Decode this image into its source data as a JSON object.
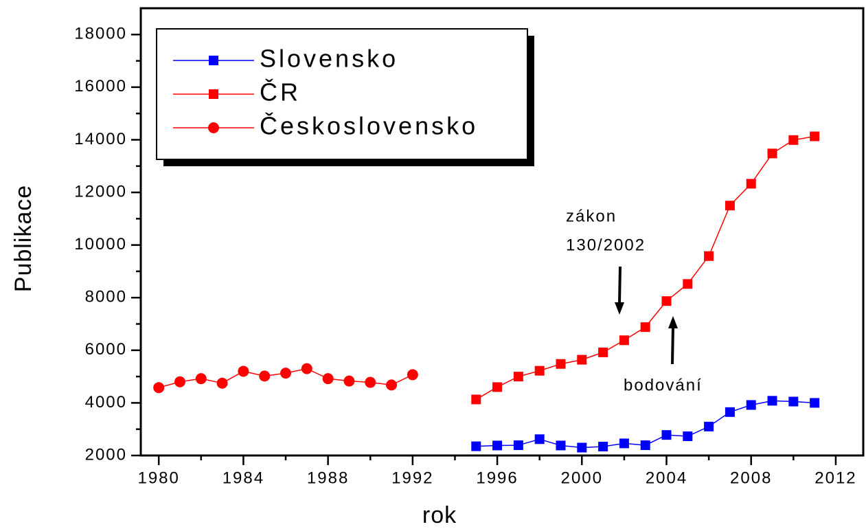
{
  "chart_data": {
    "type": "line",
    "x_label": "rok",
    "y_label": "Publikace",
    "x": [
      1980,
      1981,
      1982,
      1983,
      1984,
      1985,
      1986,
      1987,
      1988,
      1989,
      1990,
      1991,
      1992,
      1993,
      1994,
      1995,
      1996,
      1997,
      1998,
      1999,
      2000,
      2001,
      2002,
      2003,
      2004,
      2005,
      2006,
      2007,
      2008,
      2009,
      2010,
      2011
    ],
    "series": [
      {
        "name": "Slovensko",
        "color": "#0000ff",
        "marker": "square",
        "values": [
          null,
          null,
          null,
          null,
          null,
          null,
          null,
          null,
          null,
          null,
          null,
          null,
          null,
          null,
          null,
          2350,
          2380,
          2390,
          2620,
          2380,
          2300,
          2340,
          2460,
          2390,
          2780,
          2730,
          3100,
          3650,
          3920,
          4080,
          4050,
          4000
        ]
      },
      {
        "name": "ČR",
        "color": "#ff0000",
        "marker": "square",
        "values": [
          null,
          null,
          null,
          null,
          null,
          null,
          null,
          null,
          null,
          null,
          null,
          null,
          null,
          null,
          null,
          4130,
          4600,
          5000,
          5220,
          5480,
          5640,
          5920,
          6380,
          6880,
          7870,
          8520,
          9580,
          11500,
          12330,
          13480,
          13990,
          14130
        ]
      },
      {
        "name": "Československo",
        "color": "#ff0000",
        "marker": "circle",
        "values": [
          4580,
          4800,
          4920,
          4750,
          5200,
          5020,
          5130,
          5300,
          4920,
          4830,
          4780,
          4680,
          5070,
          null,
          null,
          null,
          null,
          null,
          null,
          null,
          null,
          null,
          null,
          null,
          null,
          null,
          null,
          null,
          null,
          null,
          null,
          null
        ]
      }
    ],
    "xlim": [
      1979.15,
      2013.3
    ],
    "xticks": [
      1980,
      1984,
      1988,
      1992,
      1996,
      2000,
      2004,
      2008,
      2012
    ],
    "ylim": [
      2000,
      19000
    ],
    "yticks": [
      2000,
      4000,
      6000,
      8000,
      10000,
      12000,
      14000,
      16000,
      18000
    ],
    "legend": "upper left",
    "annotations": [
      {
        "lines": [
          "zákon",
          "130/2002"
        ]
      },
      {
        "lines": [
          "bodování"
        ]
      }
    ]
  }
}
